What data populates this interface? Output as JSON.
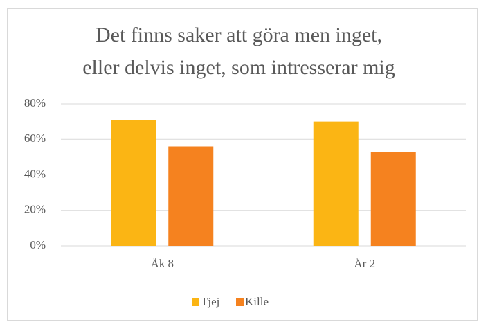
{
  "chart_data": {
    "type": "bar",
    "title": [
      "Det finns saker att göra men inget,",
      "eller delvis inget, som intresserar mig"
    ],
    "categories": [
      "Åk 8",
      "År 2"
    ],
    "series": [
      {
        "name": "Tjej",
        "color": "#fbb514",
        "values": [
          71,
          70
        ]
      },
      {
        "name": "Kille",
        "color": "#f5821f",
        "values": [
          56,
          53
        ]
      }
    ],
    "ylim": [
      0,
      80
    ],
    "yticks": [
      {
        "value": 0,
        "label": "0%"
      },
      {
        "value": 20,
        "label": "20%"
      },
      {
        "value": 40,
        "label": "40%"
      },
      {
        "value": 60,
        "label": "60%"
      },
      {
        "value": 80,
        "label": "80%"
      }
    ],
    "grid": true,
    "legend": "bottom"
  }
}
